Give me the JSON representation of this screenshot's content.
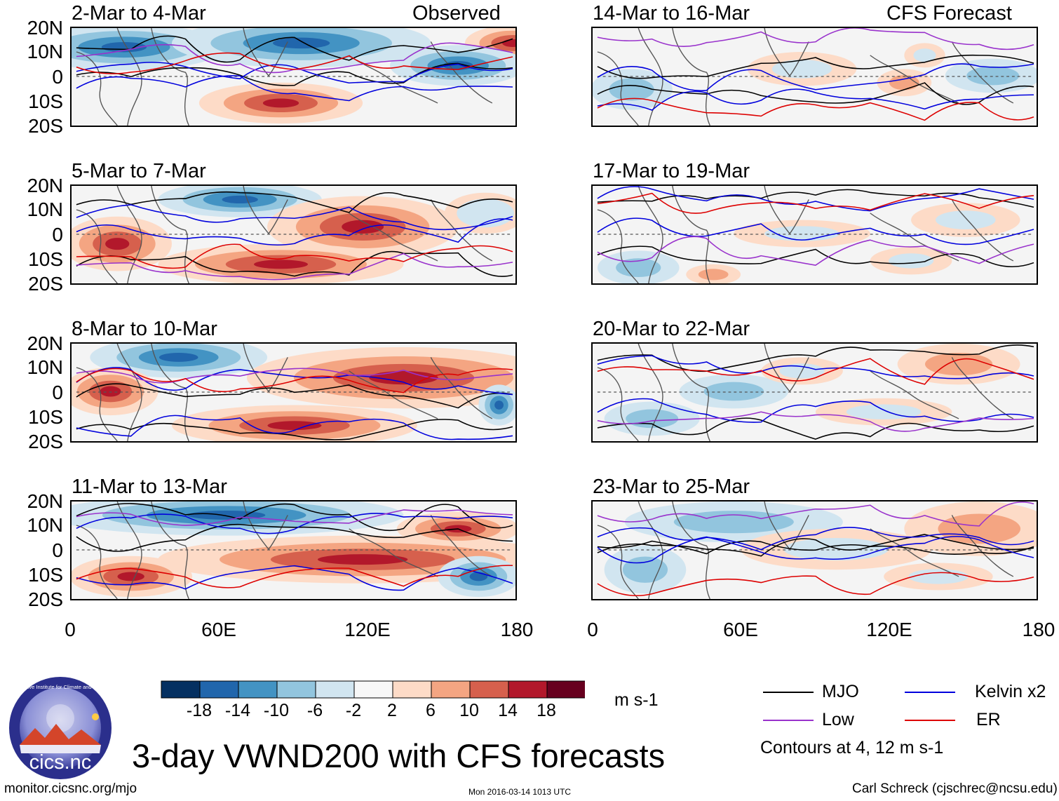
{
  "headers": {
    "left": "Observed",
    "right": "CFS Forecast"
  },
  "panels": [
    {
      "title": "2-Mar to 4-Mar",
      "col": 0,
      "row": 0
    },
    {
      "title": "5-Mar to 7-Mar",
      "col": 0,
      "row": 1
    },
    {
      "title": "8-Mar to 10-Mar",
      "col": 0,
      "row": 2
    },
    {
      "title": "11-Mar to 13-Mar",
      "col": 0,
      "row": 3
    },
    {
      "title": "14-Mar to 16-Mar",
      "col": 1,
      "row": 0
    },
    {
      "title": "17-Mar to 19-Mar",
      "col": 1,
      "row": 1
    },
    {
      "title": "20-Mar to 22-Mar",
      "col": 1,
      "row": 2
    },
    {
      "title": "23-Mar to 25-Mar",
      "col": 1,
      "row": 3
    }
  ],
  "lat_labels": [
    "20N",
    "10N",
    "0",
    "10S",
    "20S"
  ],
  "lon_labels": [
    "0",
    "60E",
    "120E",
    "180"
  ],
  "colorbar": {
    "colors": [
      "#053061",
      "#2166ac",
      "#4393c3",
      "#92c5de",
      "#d1e5f0",
      "#f7f7f7",
      "#fddbc7",
      "#f4a582",
      "#d6604d",
      "#b2182b",
      "#67001f"
    ],
    "labels": [
      "-18",
      "-14",
      "-10",
      "-6",
      "-2",
      "2",
      "6",
      "10",
      "14",
      "18"
    ],
    "units": "m s-1"
  },
  "legend": {
    "items": [
      {
        "name": "MJO",
        "color": "#000000"
      },
      {
        "name": "Kelvin x2",
        "color": "#0000dd"
      },
      {
        "name": "Low",
        "color": "#9932cc"
      },
      {
        "name": "ER",
        "color": "#dd0000"
      }
    ],
    "note": "Contours at 4, 12 m s-1"
  },
  "logo": {
    "text": "cics.nc",
    "ring_text": "Cooperative Institute for Climate and Satellites"
  },
  "main_title": "3-day VWND200 with CFS forecasts",
  "footer": {
    "url": "monitor.cicsnc.org/mjo",
    "timestamp": "Mon 2016-03-14 1013 UTC",
    "credit": "Carl Schreck (cjschrec@ncsu.edu)"
  }
}
